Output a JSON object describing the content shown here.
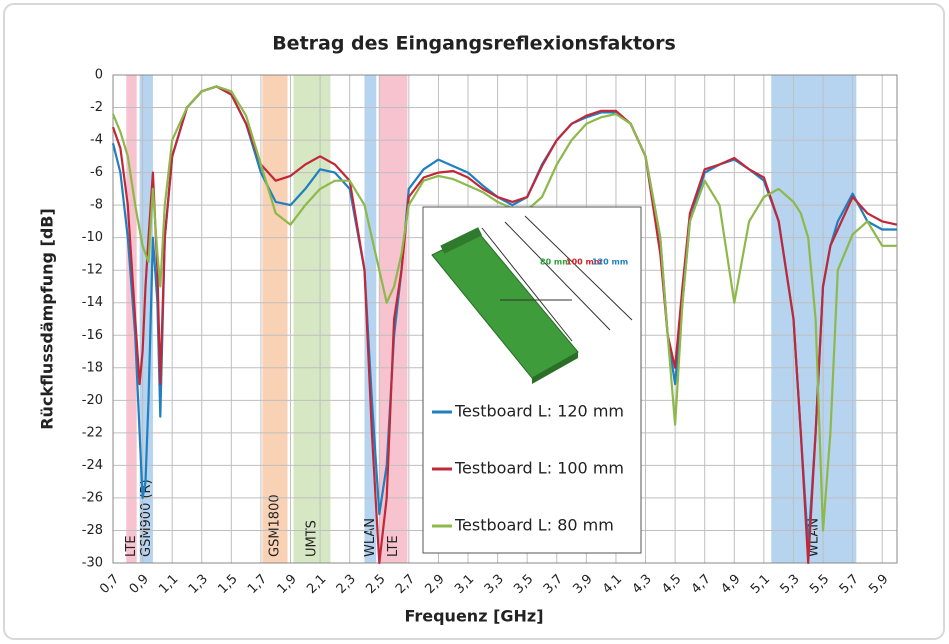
{
  "chart_data": {
    "type": "line",
    "title": "Betrag des Eingangsreflexionsfaktors",
    "x_label": "Frequenz [GHz]",
    "y_label": "Rückflussdämpfung [dB]",
    "xlim": [
      0.7,
      6.0
    ],
    "ylim": [
      -30,
      0
    ],
    "grid": true,
    "legend": "inside",
    "yticks": [
      0,
      -2,
      -4,
      -6,
      -8,
      -10,
      -12,
      -14,
      -16,
      -18,
      -20,
      -22,
      -24,
      -26,
      -28,
      -30
    ],
    "xticks": [
      {
        "value": 0.7,
        "label": "0,7"
      },
      {
        "value": 0.9,
        "label": "0,9"
      },
      {
        "value": 1.1,
        "label": "1,1"
      },
      {
        "value": 1.3,
        "label": "1,3"
      },
      {
        "value": 1.5,
        "label": "1,5"
      },
      {
        "value": 1.7,
        "label": "1,7"
      },
      {
        "value": 1.9,
        "label": "1,9"
      },
      {
        "value": 2.1,
        "label": "2,1"
      },
      {
        "value": 2.3,
        "label": "2,3"
      },
      {
        "value": 2.5,
        "label": "2,5"
      },
      {
        "value": 2.7,
        "label": "2,7"
      },
      {
        "value": 2.9,
        "label": "2,9"
      },
      {
        "value": 3.1,
        "label": "3,1"
      },
      {
        "value": 3.3,
        "label": "3,3"
      },
      {
        "value": 3.5,
        "label": "3,5"
      },
      {
        "value": 3.7,
        "label": "3,7"
      },
      {
        "value": 3.9,
        "label": "3,9"
      },
      {
        "value": 4.1,
        "label": "4,1"
      },
      {
        "value": 4.3,
        "label": "4,3"
      },
      {
        "value": 4.5,
        "label": "4,5"
      },
      {
        "value": 4.7,
        "label": "4,7"
      },
      {
        "value": 4.9,
        "label": "4,9"
      },
      {
        "value": 5.1,
        "label": "5,1"
      },
      {
        "value": 5.3,
        "label": "5,3"
      },
      {
        "value": 5.5,
        "label": "5,5"
      },
      {
        "value": 5.7,
        "label": "5,7"
      },
      {
        "value": 5.9,
        "label": "5,9"
      }
    ],
    "bands": [
      {
        "label": "LTE",
        "start": 0.79,
        "end": 0.86,
        "color": "#f4b9c6"
      },
      {
        "label": "GSM900 (R)",
        "start": 0.88,
        "end": 0.97,
        "color": "#a9cdec"
      },
      {
        "label": "GSM1800",
        "start": 1.71,
        "end": 1.88,
        "color": "#f8c9a8"
      },
      {
        "label": "UMTS",
        "start": 1.92,
        "end": 2.17,
        "color": "#cfe3b8"
      },
      {
        "label": "WLAN",
        "start": 2.4,
        "end": 2.48,
        "color": "#a9cdec"
      },
      {
        "label": "LTE",
        "start": 2.5,
        "end": 2.69,
        "color": "#f4b9c6"
      },
      {
        "label": "WLAN",
        "start": 5.15,
        "end": 5.725,
        "color": "#a9cdec"
      }
    ],
    "inset_labels": [
      {
        "text": "80 mm",
        "color": "#2e9e3a"
      },
      {
        "text": "100 mm",
        "color": "#d0202e"
      },
      {
        "text": "120 mm",
        "color": "#1f7fbf"
      }
    ],
    "x": [
      0.7,
      0.75,
      0.8,
      0.85,
      0.88,
      0.9,
      0.92,
      0.94,
      0.97,
      1.0,
      1.02,
      1.05,
      1.1,
      1.2,
      1.3,
      1.4,
      1.5,
      1.6,
      1.7,
      1.8,
      1.9,
      2.0,
      2.1,
      2.2,
      2.3,
      2.4,
      2.45,
      2.5,
      2.55,
      2.6,
      2.65,
      2.7,
      2.8,
      2.9,
      3.0,
      3.1,
      3.2,
      3.3,
      3.4,
      3.5,
      3.6,
      3.7,
      3.8,
      3.9,
      4.0,
      4.1,
      4.2,
      4.3,
      4.4,
      4.45,
      4.5,
      4.55,
      4.6,
      4.7,
      4.8,
      4.9,
      5.0,
      5.1,
      5.2,
      5.3,
      5.35,
      5.4,
      5.45,
      5.5,
      5.55,
      5.6,
      5.7,
      5.8,
      5.9,
      6.0
    ],
    "series": [
      {
        "name": "Testboard L: 120 mm",
        "color": "#1f7fbf",
        "values": [
          -4.2,
          -6,
          -10,
          -16,
          -22,
          -26,
          -25,
          -20,
          -10,
          -14,
          -21,
          -10,
          -5,
          -2,
          -1,
          -0.7,
          -1.2,
          -3,
          -6,
          -7.8,
          -8,
          -7,
          -5.8,
          -6,
          -7,
          -12,
          -20,
          -27,
          -24,
          -16,
          -12,
          -7,
          -5.8,
          -5.2,
          -5.6,
          -6,
          -6.8,
          -7.5,
          -8,
          -7.5,
          -5.5,
          -4,
          -3,
          -2.6,
          -2.3,
          -2.3,
          -3,
          -5,
          -10,
          -16,
          -19,
          -14,
          -9,
          -6,
          -5.5,
          -5.2,
          -5.8,
          -6.5,
          -9,
          -15,
          -22,
          -29,
          -22,
          -13,
          -10.5,
          -9,
          -7.3,
          -9,
          -9.5,
          -9.5
        ]
      },
      {
        "name": "Testboard L: 100 mm",
        "color": "#c0283a",
        "values": [
          -3.2,
          -4.5,
          -8,
          -15,
          -19,
          -17,
          -13,
          -10,
          -6,
          -12,
          -19,
          -10,
          -5,
          -2,
          -1,
          -0.7,
          -1.2,
          -3,
          -5.5,
          -6.5,
          -6.2,
          -5.5,
          -5,
          -5.5,
          -6.5,
          -12,
          -22,
          -30,
          -26,
          -15,
          -12,
          -7.5,
          -6.3,
          -6,
          -5.9,
          -6.3,
          -7,
          -7.5,
          -7.8,
          -7.5,
          -5.6,
          -4,
          -3,
          -2.5,
          -2.2,
          -2.2,
          -3,
          -5,
          -11,
          -16,
          -18,
          -13,
          -8.5,
          -5.8,
          -5.5,
          -5.1,
          -5.8,
          -6.3,
          -9,
          -15,
          -22,
          -30,
          -22,
          -13,
          -10.5,
          -9.5,
          -7.5,
          -8.5,
          -9,
          -9.2
        ]
      },
      {
        "name": "Testboard L: 80 mm",
        "color": "#8db84a",
        "values": [
          -2.4,
          -3.5,
          -5,
          -8,
          -9.5,
          -10.5,
          -11,
          -11.5,
          -7,
          -11,
          -13,
          -8,
          -4,
          -2,
          -1,
          -0.7,
          -1,
          -2.5,
          -5.5,
          -8.5,
          -9.2,
          -8,
          -7,
          -6.5,
          -6.5,
          -8,
          -10,
          -12,
          -14,
          -13,
          -11,
          -8,
          -6.5,
          -6.2,
          -6.4,
          -6.8,
          -7.2,
          -7.8,
          -8.2,
          -8.3,
          -7.5,
          -5.5,
          -4,
          -3,
          -2.6,
          -2.4,
          -3,
          -5,
          -10,
          -16,
          -21.5,
          -14,
          -9,
          -6.5,
          -8,
          -14,
          -9,
          -7.5,
          -7,
          -7.8,
          -8.5,
          -10,
          -15,
          -28,
          -22,
          -12,
          -9.8,
          -9,
          -10.5,
          -10.5
        ]
      }
    ]
  }
}
